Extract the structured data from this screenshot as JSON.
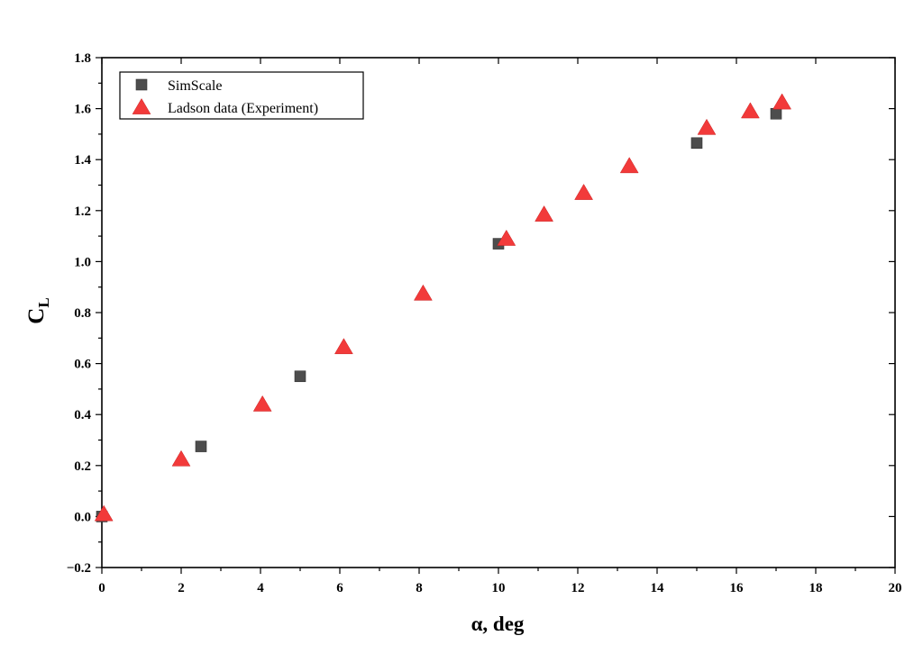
{
  "chart_data": {
    "type": "scatter",
    "xlabel": "α, deg",
    "ylabel_main": "C",
    "ylabel_sub": "L",
    "xlim": [
      0,
      20
    ],
    "ylim": [
      -0.2,
      1.8
    ],
    "xticks": [
      0,
      2,
      4,
      6,
      8,
      10,
      12,
      14,
      16,
      18,
      20
    ],
    "yticks": [
      -0.2,
      0.0,
      0.2,
      0.4,
      0.6,
      0.8,
      1.0,
      1.2,
      1.4,
      1.6,
      1.8
    ],
    "grid": false,
    "legend_position": "top-left",
    "series": [
      {
        "name": "SimScale",
        "marker": "square",
        "color": "#4d4d4d",
        "x": [
          0,
          2.5,
          5,
          10,
          15,
          17
        ],
        "y": [
          0.0,
          0.275,
          0.55,
          1.07,
          1.465,
          1.58
        ]
      },
      {
        "name": "Ladson data (Experiment)",
        "marker": "triangle",
        "color": "#f23a3a",
        "x": [
          0.05,
          2.0,
          4.05,
          6.1,
          8.1,
          10.2,
          11.15,
          12.15,
          13.3,
          15.25,
          16.35,
          17.15
        ],
        "y": [
          0.01,
          0.225,
          0.44,
          0.665,
          0.875,
          1.09,
          1.185,
          1.27,
          1.375,
          1.525,
          1.59,
          1.625
        ]
      }
    ]
  }
}
